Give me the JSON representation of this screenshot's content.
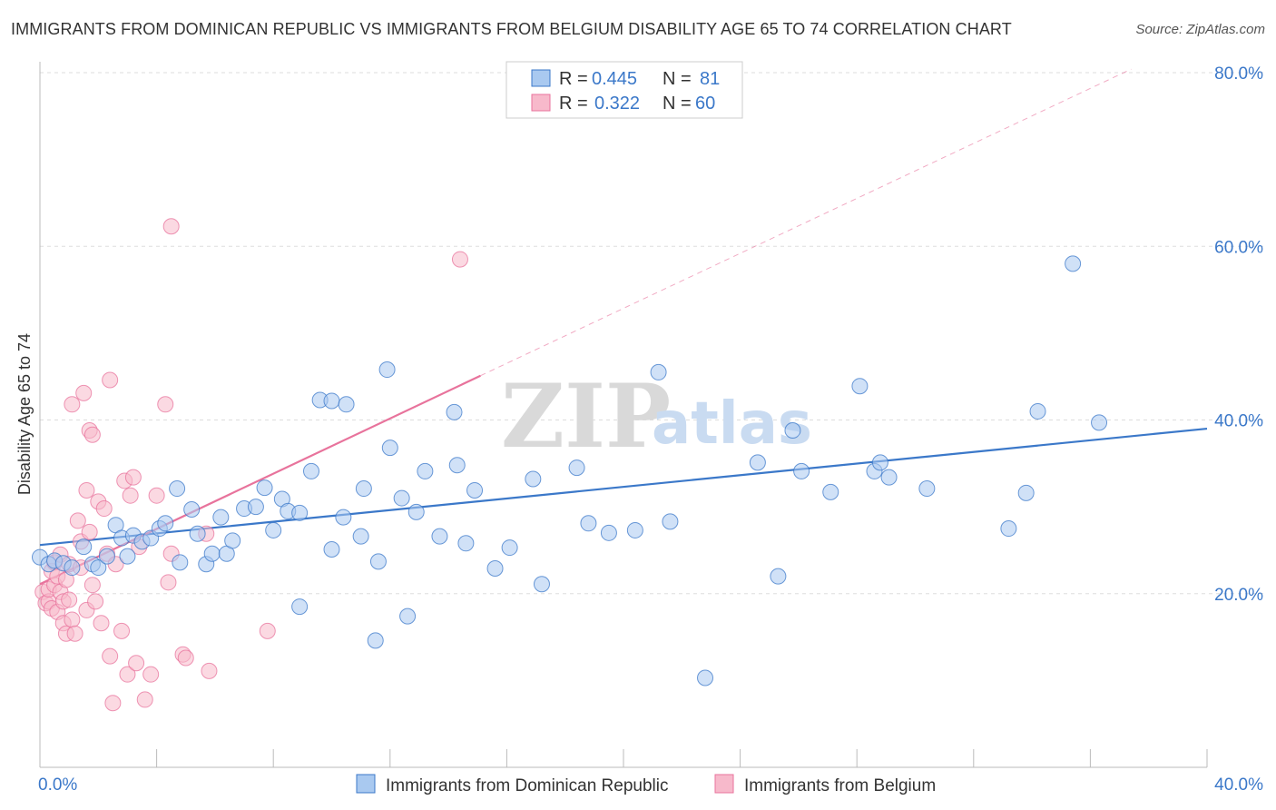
{
  "header": {
    "title": "IMMIGRANTS FROM DOMINICAN REPUBLIC VS IMMIGRANTS FROM BELGIUM DISABILITY AGE 65 TO 74 CORRELATION CHART",
    "source": "Source: ZipAtlas.com"
  },
  "watermark": {
    "zip": "ZIP",
    "atlas": "atlas"
  },
  "legend": {
    "r_label": "R =",
    "n_label": "N =",
    "rows": [
      {
        "r": "0.445",
        "n": "81",
        "color": "#a9c9f0"
      },
      {
        "r": "0.322",
        "n": "60",
        "color": "#f7b9cb"
      }
    ]
  },
  "chart_data": {
    "type": "scatter",
    "title": "IMMIGRANTS FROM DOMINICAN REPUBLIC VS IMMIGRANTS FROM BELGIUM DISABILITY AGE 65 TO 74 CORRELATION CHART",
    "xlabel": "",
    "ylabel": "Disability Age 65 to 74",
    "xlim": [
      0,
      40
    ],
    "ylim": [
      0,
      80
    ],
    "x_ticks": [
      0,
      4,
      8,
      12,
      16,
      20,
      24,
      28,
      32,
      36,
      40
    ],
    "x_tick_labels": {
      "0": "0.0%",
      "40": "40.0%"
    },
    "y_ticks": [
      20,
      40,
      60,
      80
    ],
    "y_tick_labels": [
      "20.0%",
      "40.0%",
      "60.0%",
      "80.0%"
    ],
    "grid": true,
    "legend_position": "top-center",
    "series": [
      {
        "name": "Immigrants from Dominican Republic",
        "color": "#3b78c9",
        "fill": "#a9c9f0",
        "r": 0.445,
        "n": 81,
        "trend": {
          "x0": 0,
          "y0": 25.6,
          "x1": 40,
          "y1": 39.0,
          "dashed_extension": false
        },
        "points": [
          [
            0.0,
            24.2
          ],
          [
            0.3,
            23.4
          ],
          [
            0.5,
            23.8
          ],
          [
            0.8,
            23.5
          ],
          [
            1.1,
            23.0
          ],
          [
            1.5,
            25.4
          ],
          [
            1.8,
            23.4
          ],
          [
            2.0,
            23.0
          ],
          [
            2.3,
            24.3
          ],
          [
            2.6,
            27.9
          ],
          [
            2.8,
            26.4
          ],
          [
            3.0,
            24.3
          ],
          [
            3.2,
            26.7
          ],
          [
            3.5,
            26.0
          ],
          [
            3.8,
            26.4
          ],
          [
            4.1,
            27.5
          ],
          [
            4.3,
            28.1
          ],
          [
            4.7,
            32.1
          ],
          [
            4.8,
            23.6
          ],
          [
            5.2,
            29.7
          ],
          [
            5.4,
            26.9
          ],
          [
            5.7,
            23.4
          ],
          [
            5.9,
            24.6
          ],
          [
            6.2,
            28.8
          ],
          [
            6.4,
            24.6
          ],
          [
            6.6,
            26.1
          ],
          [
            7.0,
            29.8
          ],
          [
            7.4,
            30.0
          ],
          [
            7.7,
            32.2
          ],
          [
            8.0,
            27.3
          ],
          [
            8.3,
            30.9
          ],
          [
            8.5,
            29.5
          ],
          [
            8.9,
            29.3
          ],
          [
            8.9,
            18.5
          ],
          [
            9.3,
            34.1
          ],
          [
            9.6,
            42.3
          ],
          [
            10.0,
            42.2
          ],
          [
            10.0,
            25.1
          ],
          [
            10.4,
            28.8
          ],
          [
            10.5,
            41.8
          ],
          [
            11.0,
            26.6
          ],
          [
            11.1,
            32.1
          ],
          [
            11.5,
            14.6
          ],
          [
            11.6,
            23.7
          ],
          [
            11.9,
            45.8
          ],
          [
            12.0,
            36.8
          ],
          [
            12.4,
            31.0
          ],
          [
            12.6,
            17.4
          ],
          [
            12.9,
            29.4
          ],
          [
            13.2,
            34.1
          ],
          [
            13.7,
            26.6
          ],
          [
            14.2,
            40.9
          ],
          [
            14.3,
            34.8
          ],
          [
            14.6,
            25.8
          ],
          [
            14.9,
            31.9
          ],
          [
            15.6,
            22.9
          ],
          [
            16.1,
            25.3
          ],
          [
            16.9,
            33.2
          ],
          [
            17.2,
            21.1
          ],
          [
            18.4,
            34.5
          ],
          [
            18.8,
            28.1
          ],
          [
            19.5,
            27.0
          ],
          [
            20.4,
            27.3
          ],
          [
            21.2,
            45.5
          ],
          [
            21.6,
            28.3
          ],
          [
            22.8,
            10.3
          ],
          [
            24.6,
            35.1
          ],
          [
            25.3,
            22.0
          ],
          [
            25.8,
            38.8
          ],
          [
            26.1,
            34.1
          ],
          [
            27.1,
            31.7
          ],
          [
            28.1,
            43.9
          ],
          [
            28.6,
            34.1
          ],
          [
            28.8,
            35.1
          ],
          [
            29.1,
            33.4
          ],
          [
            30.4,
            32.1
          ],
          [
            33.2,
            27.5
          ],
          [
            33.8,
            31.6
          ],
          [
            34.2,
            41.0
          ],
          [
            35.4,
            58.0
          ],
          [
            36.3,
            39.7
          ]
        ]
      },
      {
        "name": "Immigrants from Belgium",
        "color": "#e8739c",
        "fill": "#f7b9cb",
        "r": 0.322,
        "n": 60,
        "trend": {
          "x0": 0,
          "y0": 21.1,
          "x1": 15.1,
          "y1": 45.1,
          "dashed_to_x": 37.4,
          "dashed_to_y": 80.4
        },
        "points": [
          [
            0.1,
            20.2
          ],
          [
            0.2,
            18.9
          ],
          [
            0.3,
            19.1
          ],
          [
            0.3,
            20.5
          ],
          [
            0.4,
            18.3
          ],
          [
            0.4,
            22.6
          ],
          [
            0.5,
            23.6
          ],
          [
            0.5,
            21.0
          ],
          [
            0.6,
            17.9
          ],
          [
            0.6,
            22.0
          ],
          [
            0.7,
            24.5
          ],
          [
            0.7,
            20.2
          ],
          [
            0.8,
            19.1
          ],
          [
            0.8,
            16.6
          ],
          [
            0.9,
            21.6
          ],
          [
            0.9,
            15.4
          ],
          [
            1.0,
            23.4
          ],
          [
            1.0,
            19.3
          ],
          [
            1.1,
            41.8
          ],
          [
            1.1,
            17.0
          ],
          [
            1.2,
            15.4
          ],
          [
            1.3,
            28.4
          ],
          [
            1.4,
            23.0
          ],
          [
            1.4,
            26.0
          ],
          [
            1.5,
            43.1
          ],
          [
            1.6,
            31.9
          ],
          [
            1.6,
            18.1
          ],
          [
            1.7,
            27.1
          ],
          [
            1.7,
            38.8
          ],
          [
            1.8,
            38.3
          ],
          [
            1.8,
            21.0
          ],
          [
            1.9,
            19.1
          ],
          [
            2.0,
            30.6
          ],
          [
            2.1,
            16.6
          ],
          [
            2.2,
            29.8
          ],
          [
            2.3,
            24.6
          ],
          [
            2.4,
            44.6
          ],
          [
            2.4,
            12.8
          ],
          [
            2.5,
            7.4
          ],
          [
            2.6,
            23.4
          ],
          [
            2.8,
            15.7
          ],
          [
            2.9,
            33.0
          ],
          [
            3.0,
            10.7
          ],
          [
            3.1,
            31.3
          ],
          [
            3.2,
            33.4
          ],
          [
            3.3,
            12.0
          ],
          [
            3.4,
            25.4
          ],
          [
            3.6,
            7.8
          ],
          [
            3.8,
            10.7
          ],
          [
            4.0,
            31.3
          ],
          [
            4.3,
            41.8
          ],
          [
            4.4,
            21.3
          ],
          [
            4.5,
            24.6
          ],
          [
            4.5,
            62.3
          ],
          [
            4.9,
            13.0
          ],
          [
            5.0,
            12.6
          ],
          [
            5.7,
            26.9
          ],
          [
            5.8,
            11.1
          ],
          [
            7.8,
            15.7
          ],
          [
            14.4,
            58.5
          ]
        ]
      }
    ]
  },
  "bottom_legend": {
    "items": [
      {
        "label": "Immigrants from Dominican Republic",
        "color": "#a9c9f0",
        "stroke": "#3b78c9"
      },
      {
        "label": "Immigrants from Belgium",
        "color": "#f7b9cb",
        "stroke": "#e8739c"
      }
    ]
  }
}
